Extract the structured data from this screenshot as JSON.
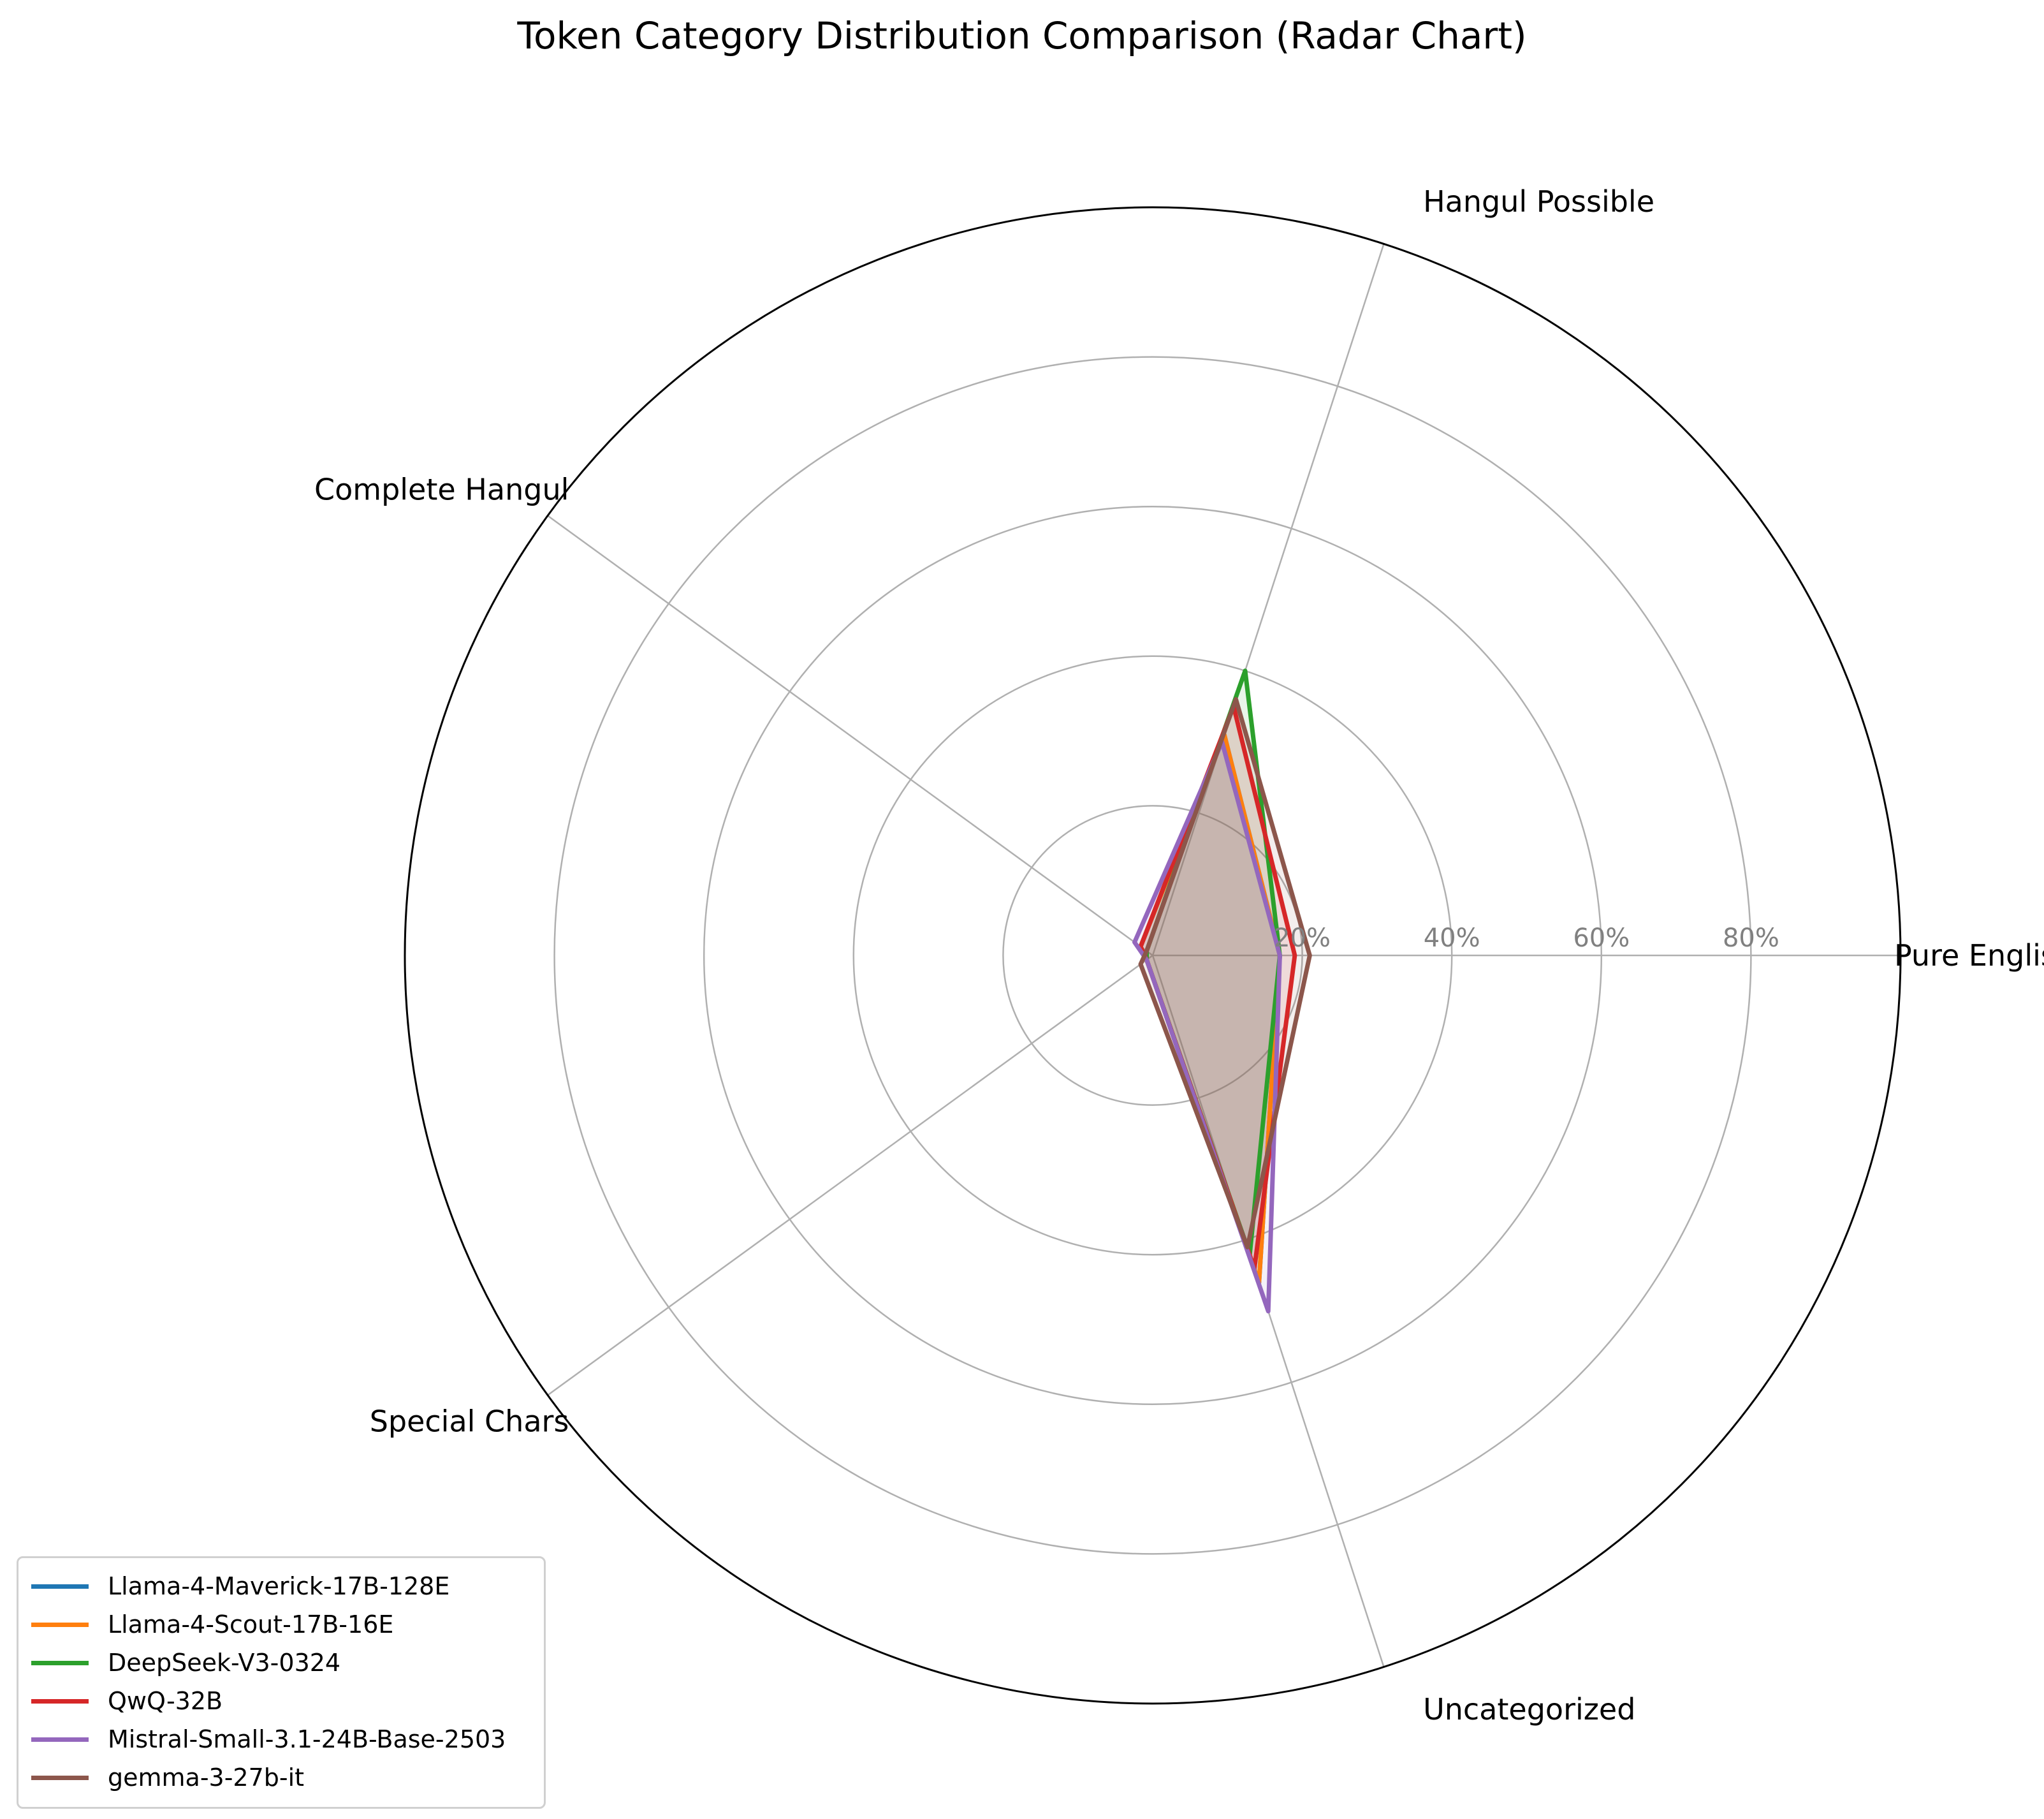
{
  "chart_data": {
    "type": "radar",
    "title": "Token Category Distribution Comparison (Radar Chart)",
    "categories": [
      "Pure English",
      "Hangul Possible",
      "Complete Hangul",
      "Special Chars",
      "Uncategorized"
    ],
    "rlim": [
      0,
      100
    ],
    "r_ticks": [
      20,
      40,
      60,
      80
    ],
    "r_tick_labels": [
      "20%",
      "40%",
      "60%",
      "80%"
    ],
    "grid": true,
    "legend_position": "lower-left",
    "fill_alpha": 0.1,
    "series": [
      {
        "name": "Llama-4-Maverick-17B-128E",
        "color": "#1f77b4",
        "values": [
          17,
          31,
          2,
          1,
          46
        ]
      },
      {
        "name": "Llama-4-Scout-17B-16E",
        "color": "#ff7f0e",
        "values": [
          17,
          31,
          2,
          1,
          46
        ]
      },
      {
        "name": "DeepSeek-V3-0324",
        "color": "#2ca02c",
        "values": [
          17,
          40,
          1,
          1,
          42
        ]
      },
      {
        "name": "QwQ-32B",
        "color": "#d62728",
        "values": [
          19,
          35,
          2,
          1,
          44
        ]
      },
      {
        "name": "Mistral-Small-3.1-24B-Base-2503",
        "color": "#9467bd",
        "values": [
          17,
          30,
          3,
          1,
          50
        ]
      },
      {
        "name": "gemma-3-27b-it",
        "color": "#8c564b",
        "values": [
          21,
          36,
          1,
          2,
          41
        ]
      }
    ]
  }
}
